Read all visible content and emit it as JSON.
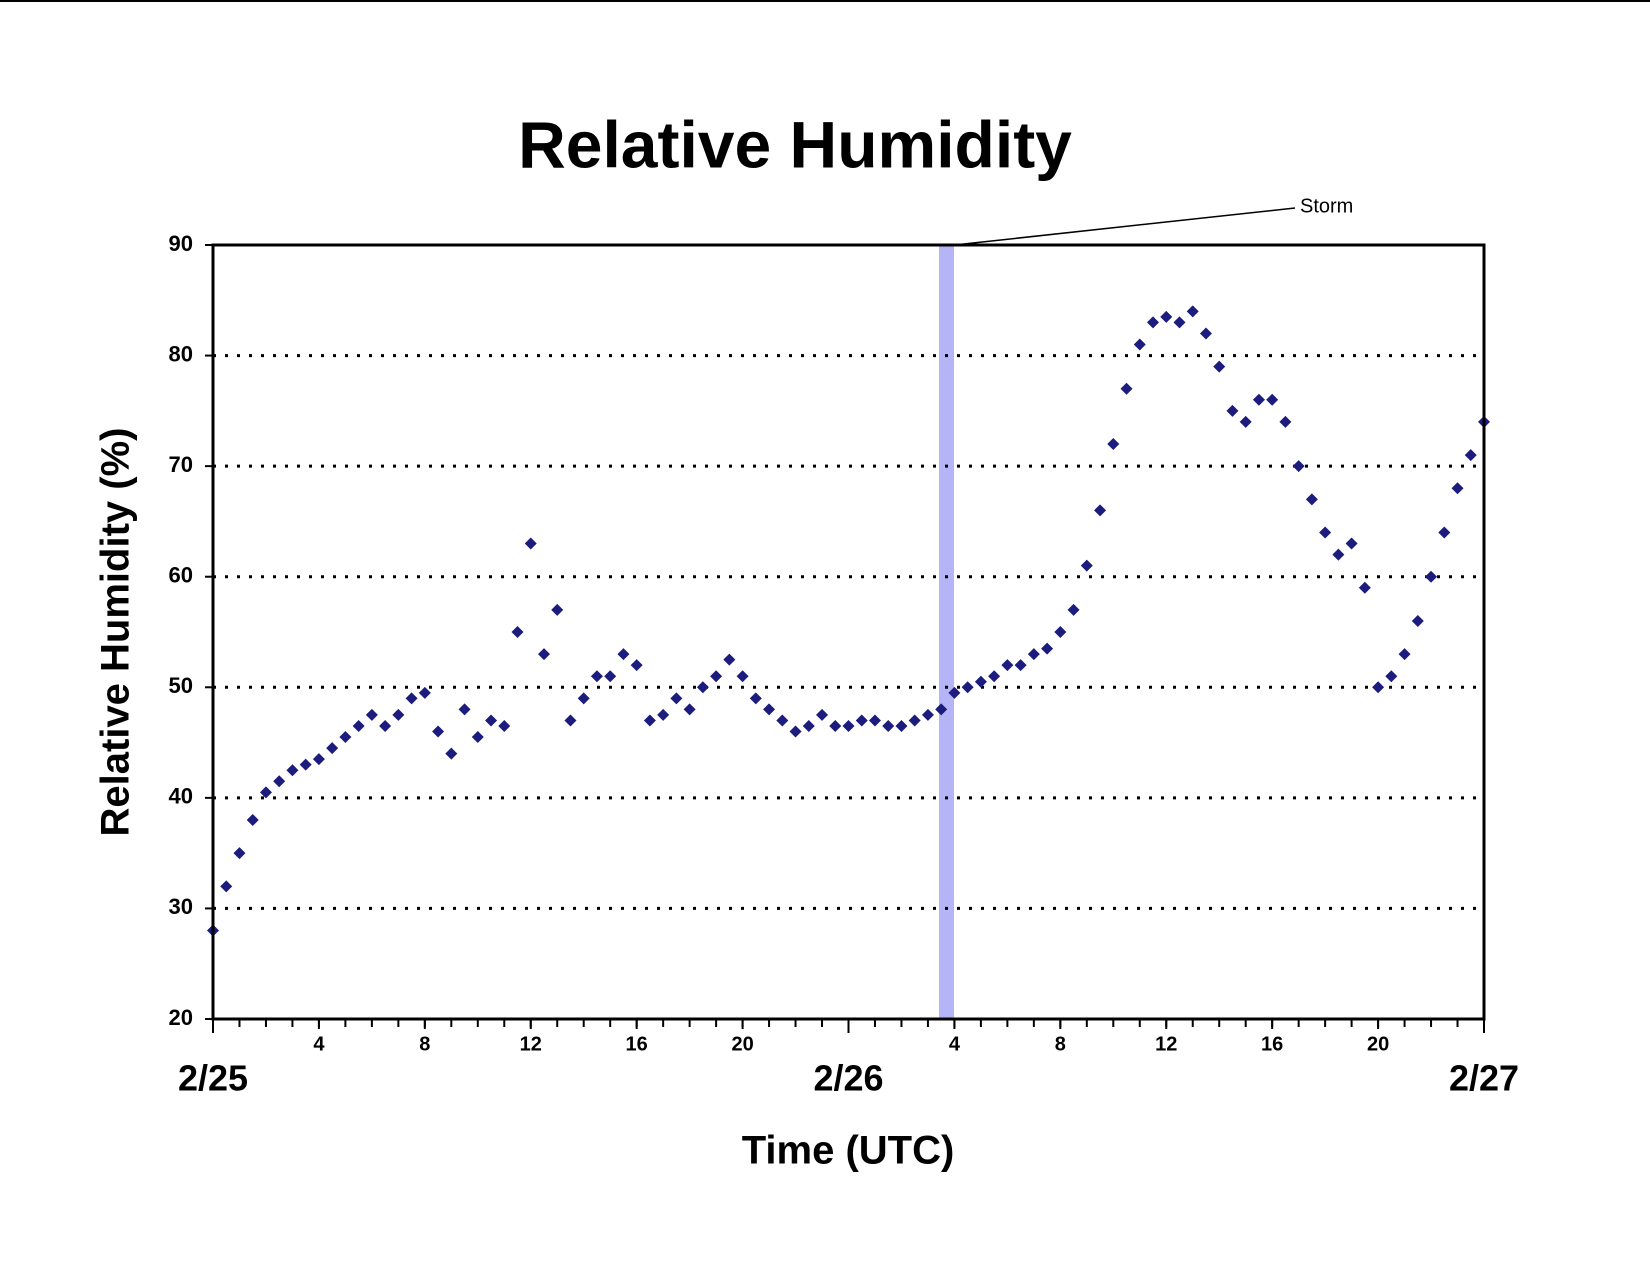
{
  "chart_data": {
    "type": "scatter",
    "title": "Relative Humidity",
    "x_label": "Time (UTC)",
    "y_label": "Relative Humidity (%)",
    "x": [
      0,
      0.5,
      1,
      1.5,
      2,
      2.5,
      3,
      3.5,
      4,
      4.5,
      5,
      5.5,
      6,
      6.5,
      7,
      7.5,
      8,
      8.5,
      9,
      9.5,
      10,
      10.5,
      11,
      11.5,
      12,
      12.5,
      13,
      13.5,
      14,
      14.5,
      15,
      15.5,
      16,
      16.5,
      17,
      17.5,
      18,
      18.5,
      19,
      19.5,
      20,
      20.5,
      21,
      21.5,
      22,
      22.5,
      23,
      23.5,
      24,
      24.5,
      25,
      25.5,
      26,
      26.5,
      27,
      27.5,
      28,
      28.5,
      29,
      29.5,
      30,
      30.5,
      31,
      31.5,
      32,
      32.5,
      33,
      33.5,
      34,
      34.5,
      35,
      35.5,
      36,
      36.5,
      37,
      37.5,
      38,
      38.5,
      39,
      39.5,
      40,
      40.5,
      41,
      41.5,
      42,
      42.5,
      43,
      43.5,
      44,
      44.5,
      45,
      45.5,
      46,
      46.5,
      47,
      47.5,
      48
    ],
    "values": [
      28,
      32,
      35,
      38,
      40.5,
      41.5,
      42.5,
      43,
      43.5,
      44.5,
      45.5,
      46.5,
      47.5,
      46.5,
      47.5,
      49,
      49.5,
      46,
      44,
      48,
      45.5,
      47,
      46.5,
      55,
      63,
      53,
      57,
      47,
      49,
      51,
      51,
      53,
      52,
      47,
      47.5,
      49,
      48,
      50,
      51,
      52.5,
      51,
      49,
      48,
      47,
      46,
      46.5,
      47.5,
      46.5,
      46.5,
      47,
      47,
      46.5,
      46.5,
      47,
      47.5,
      48,
      49.5,
      50,
      50.5,
      51,
      52,
      52,
      53,
      53.5,
      55,
      57,
      61,
      66,
      72,
      77,
      81,
      83,
      83.5,
      83,
      84,
      82,
      79,
      75,
      74,
      76,
      76,
      74,
      70,
      67,
      64,
      62,
      63,
      59,
      50,
      51,
      53,
      56,
      60,
      64,
      68,
      71,
      74
    ],
    "color": "#1c1c7e",
    "xlim": [
      0,
      48
    ],
    "ylim": [
      20,
      90
    ],
    "yticks": [
      20,
      30,
      40,
      50,
      60,
      70,
      80,
      90
    ],
    "xticks": [
      4,
      8,
      12,
      16,
      20,
      {
        "value": 28,
        "label": "4"
      },
      {
        "value": 32,
        "label": "8"
      },
      {
        "value": 36,
        "label": "12"
      },
      {
        "value": 40,
        "label": "16"
      },
      {
        "value": 44,
        "label": "20"
      }
    ],
    "date_ticks": [
      {
        "value": 0,
        "label": "2/25"
      },
      {
        "value": 24,
        "label": "2/26"
      },
      {
        "value": 48,
        "label": "2/27"
      }
    ],
    "x_minor_step": 1,
    "grid": true,
    "annotations": [
      {
        "text": "Storm",
        "x": 27.7,
        "color": "#b4b4f6"
      }
    ]
  }
}
